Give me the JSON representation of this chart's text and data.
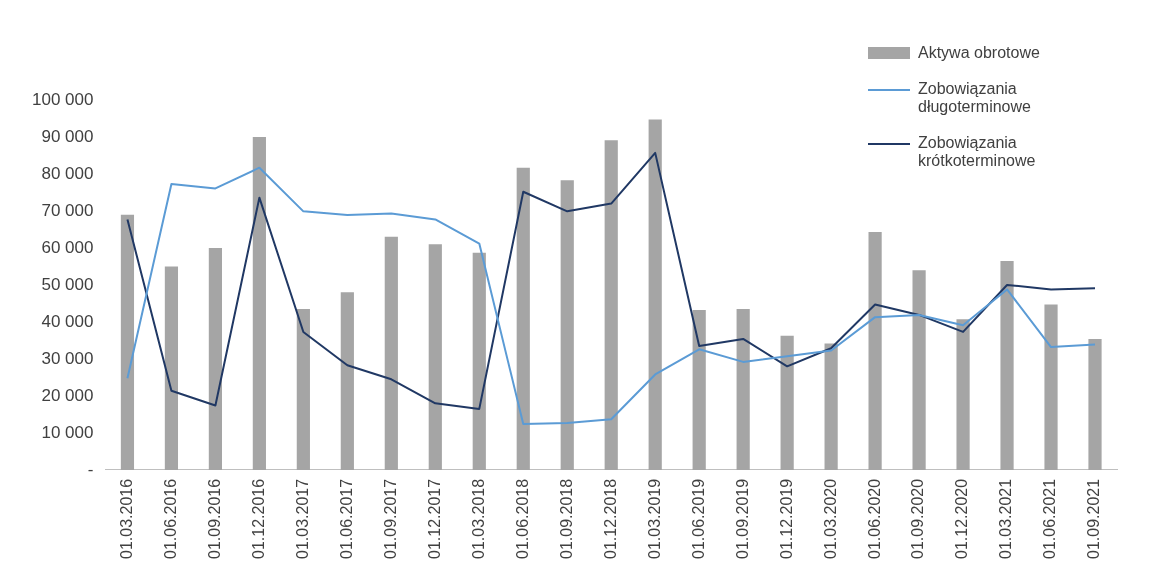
{
  "chart_data": {
    "type": "bar",
    "categories": [
      "01.03.2016",
      "01.06.2016",
      "01.09.2016",
      "01.12.2016",
      "01.03.2017",
      "01.06.2017",
      "01.09.2017",
      "01.12.2017",
      "01.03.2018",
      "01.06.2018",
      "01.09.2018",
      "01.12.2018",
      "01.03.2019",
      "01.06.2019",
      "01.09.2019",
      "01.12.2019",
      "01.03.2020",
      "01.06.2020",
      "01.09.2020",
      "01.12.2020",
      "01.03.2021",
      "01.06.2021",
      "01.09.2021"
    ],
    "series": [
      {
        "name": "Aktywa obrotowe",
        "color": "#a5a5a5",
        "values": [
          69000,
          55000,
          60000,
          90000,
          43500,
          48000,
          63000,
          61000,
          58700,
          81700,
          78300,
          89100,
          94700,
          43200,
          43500,
          36300,
          34200,
          64300,
          54000,
          40700,
          56500,
          44700,
          35400
        ]
      },
      {
        "name": "Zobowiązania długoterminowe",
        "type": "line",
        "color": "#5b9bd5",
        "values": [
          24800,
          77300,
          76100,
          81700,
          69900,
          68900,
          69300,
          67700,
          61200,
          12400,
          12700,
          13700,
          25800,
          32600,
          29200,
          30700,
          32300,
          41300,
          41900,
          39100,
          48800,
          33200,
          33900
        ]
      },
      {
        "name": "Zobowiązania krótkoterminowe",
        "type": "line",
        "color": "#203864",
        "values": [
          67700,
          21400,
          17400,
          73600,
          37300,
          28300,
          24500,
          18000,
          16500,
          75200,
          69900,
          72000,
          85700,
          33500,
          35400,
          28000,
          32900,
          44700,
          41900,
          37300,
          50000,
          48800,
          49100
        ]
      }
    ],
    "ylim": [
      0,
      100000
    ],
    "yticks": [
      {
        "value": 0,
        "label": "-"
      },
      {
        "value": 10000,
        "label": "10 000"
      },
      {
        "value": 20000,
        "label": "20 000"
      },
      {
        "value": 30000,
        "label": "30 000"
      },
      {
        "value": 40000,
        "label": "40 000"
      },
      {
        "value": 50000,
        "label": "50 000"
      },
      {
        "value": 60000,
        "label": "60 000"
      },
      {
        "value": 70000,
        "label": "70 000"
      },
      {
        "value": 80000,
        "label": "80 000"
      },
      {
        "value": 90000,
        "label": "90 000"
      },
      {
        "value": 100000,
        "label": "100 000"
      }
    ],
    "grid": false,
    "legend": "top right",
    "marker": "none",
    "line_style": "solid"
  }
}
